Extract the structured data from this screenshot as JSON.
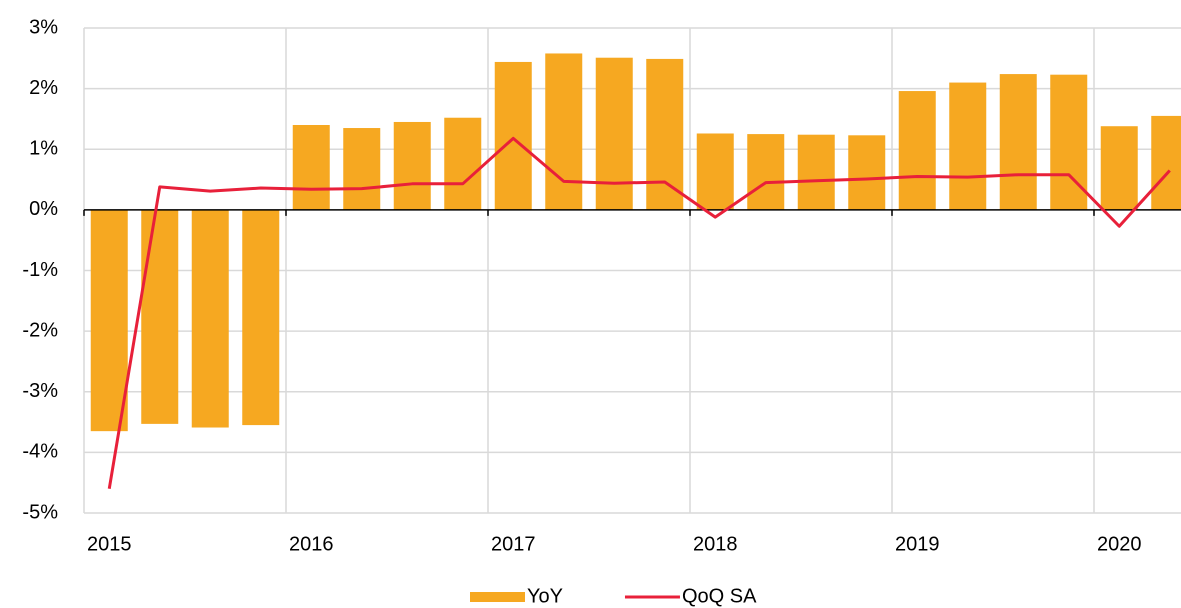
{
  "chart_data": {
    "type": "bar+line",
    "categories": [
      "2015",
      null,
      null,
      null,
      "2016",
      null,
      null,
      null,
      "2017",
      null,
      null,
      null,
      "2018",
      null,
      null,
      null,
      "2019",
      null,
      null,
      null,
      "2020",
      null
    ],
    "series": [
      {
        "name": "YoY",
        "type": "bar",
        "color": "#f6a821",
        "values": [
          -3.65,
          -3.53,
          -3.59,
          -3.55,
          1.4,
          1.35,
          1.45,
          1.52,
          2.44,
          2.58,
          2.51,
          2.49,
          1.26,
          1.25,
          1.24,
          1.23,
          1.96,
          2.1,
          2.24,
          2.23,
          1.38,
          1.55
        ]
      },
      {
        "name": "QoQ SA",
        "type": "line",
        "color": "#e8203a",
        "values": [
          -4.6,
          0.38,
          0.31,
          0.36,
          0.34,
          0.35,
          0.43,
          0.43,
          1.18,
          0.47,
          0.44,
          0.46,
          -0.12,
          0.45,
          0.48,
          0.51,
          0.55,
          0.54,
          0.58,
          0.58,
          -0.27,
          0.65
        ]
      }
    ],
    "ylim": [
      -5,
      3
    ],
    "yticks": [
      {
        "value": -5,
        "label": "-5%"
      },
      {
        "value": -4,
        "label": "-4%"
      },
      {
        "value": -3,
        "label": "-3%"
      },
      {
        "value": -2,
        "label": "-2%"
      },
      {
        "value": -1,
        "label": "-1%"
      },
      {
        "value": 0,
        "label": "0%"
      },
      {
        "value": 1,
        "label": "1%"
      },
      {
        "value": 2,
        "label": "2%"
      },
      {
        "value": 3,
        "label": "3%"
      }
    ],
    "grid": true,
    "legend": "bottom"
  }
}
